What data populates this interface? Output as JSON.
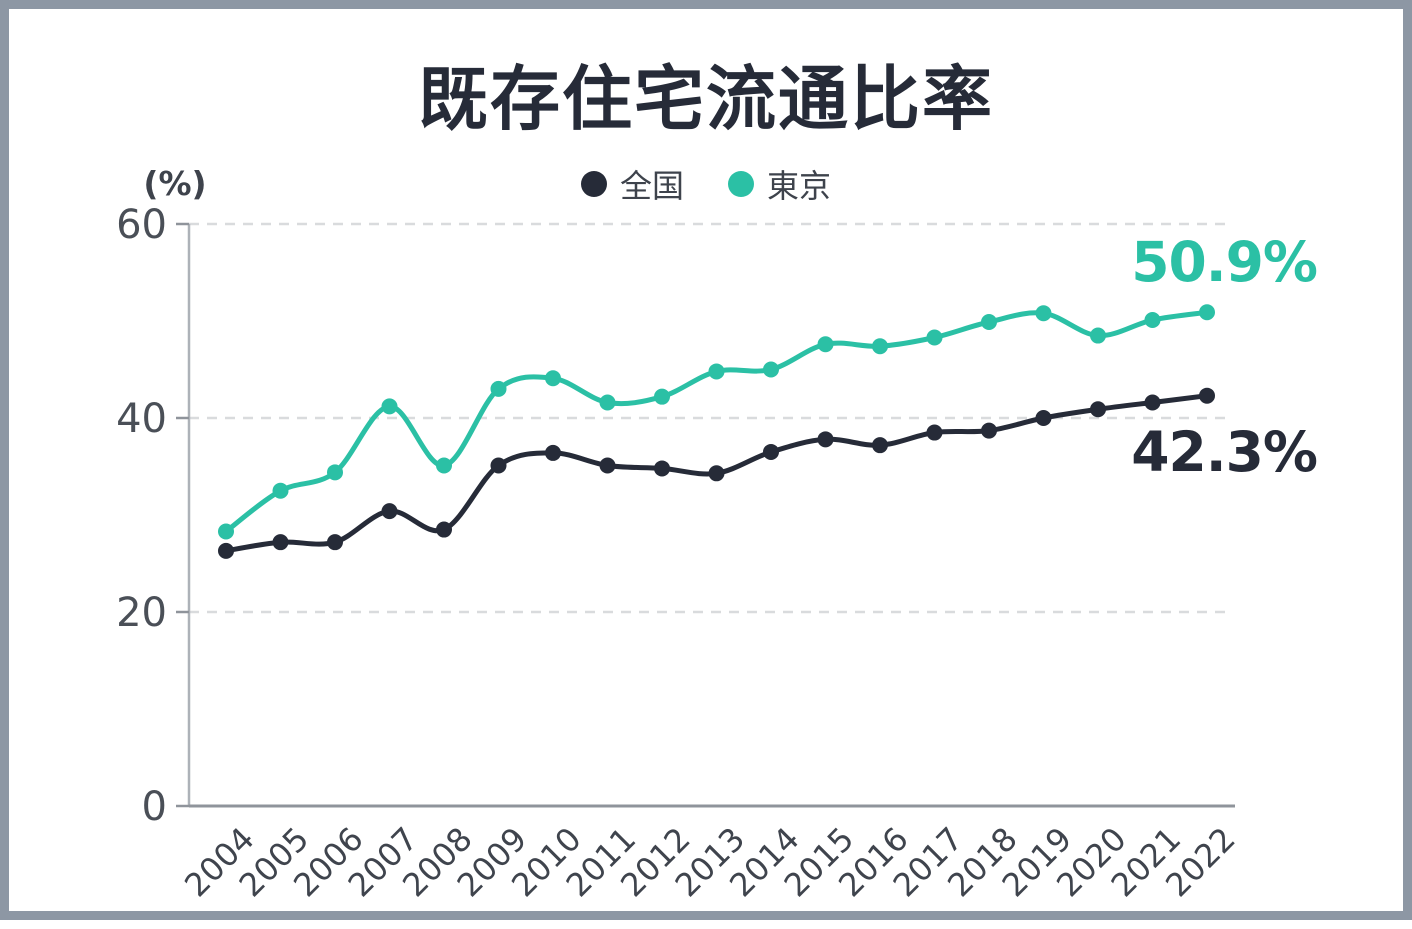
{
  "chart": {
    "title": "既存住宅流通比率",
    "y_unit": "(%)",
    "legend": [
      {
        "id": "zenkoku",
        "label": "全国",
        "color": "#262B38"
      },
      {
        "id": "tokyo",
        "label": "東京",
        "color": "#2BC0A5"
      }
    ],
    "end_labels": {
      "zenkoku": "42.3%",
      "tokyo": "50.9%"
    }
  },
  "colors": {
    "accent_teal": "#2BC0A5",
    "dark": "#262B38",
    "frame_border": "#8D97A4",
    "grid_line": "#D9DBDD",
    "axis_line": "#8F949B",
    "y_axis_line": "#ADB2B8",
    "tick_text": "#4A4F57",
    "x_label_text": "#3F444D",
    "unit_text": "#3E434C"
  },
  "chart_data": {
    "type": "line",
    "title": "既存住宅流通比率",
    "ylabel": "(%)",
    "ylim": [
      0,
      60
    ],
    "y_ticks": [
      0,
      20,
      40,
      60
    ],
    "grid": "horizontal-dashed",
    "legend_position": "top-center",
    "x_label_rotation_deg": -45,
    "x": [
      "2004",
      "2005",
      "2006",
      "2007",
      "2008",
      "2009",
      "2010",
      "2011",
      "2012",
      "2013",
      "2014",
      "2015",
      "2016",
      "2017",
      "2018",
      "2019",
      "2020",
      "2021",
      "2022"
    ],
    "series": [
      {
        "id": "zenkoku",
        "name": "全国",
        "color": "#262B38",
        "end_label": "42.3%",
        "values": [
          26.3,
          27.2,
          27.2,
          30.4,
          28.5,
          35.1,
          36.4,
          35.1,
          34.8,
          34.3,
          36.5,
          37.8,
          37.2,
          38.5,
          38.7,
          40.0,
          40.9,
          41.6,
          42.3
        ]
      },
      {
        "id": "tokyo",
        "name": "東京",
        "color": "#2BC0A5",
        "end_label": "50.9%",
        "values": [
          28.3,
          32.5,
          34.4,
          41.2,
          35.1,
          43.0,
          44.1,
          41.6,
          42.2,
          44.8,
          45.0,
          47.6,
          47.4,
          48.3,
          49.9,
          50.8,
          48.5,
          50.1,
          50.9
        ]
      }
    ]
  }
}
